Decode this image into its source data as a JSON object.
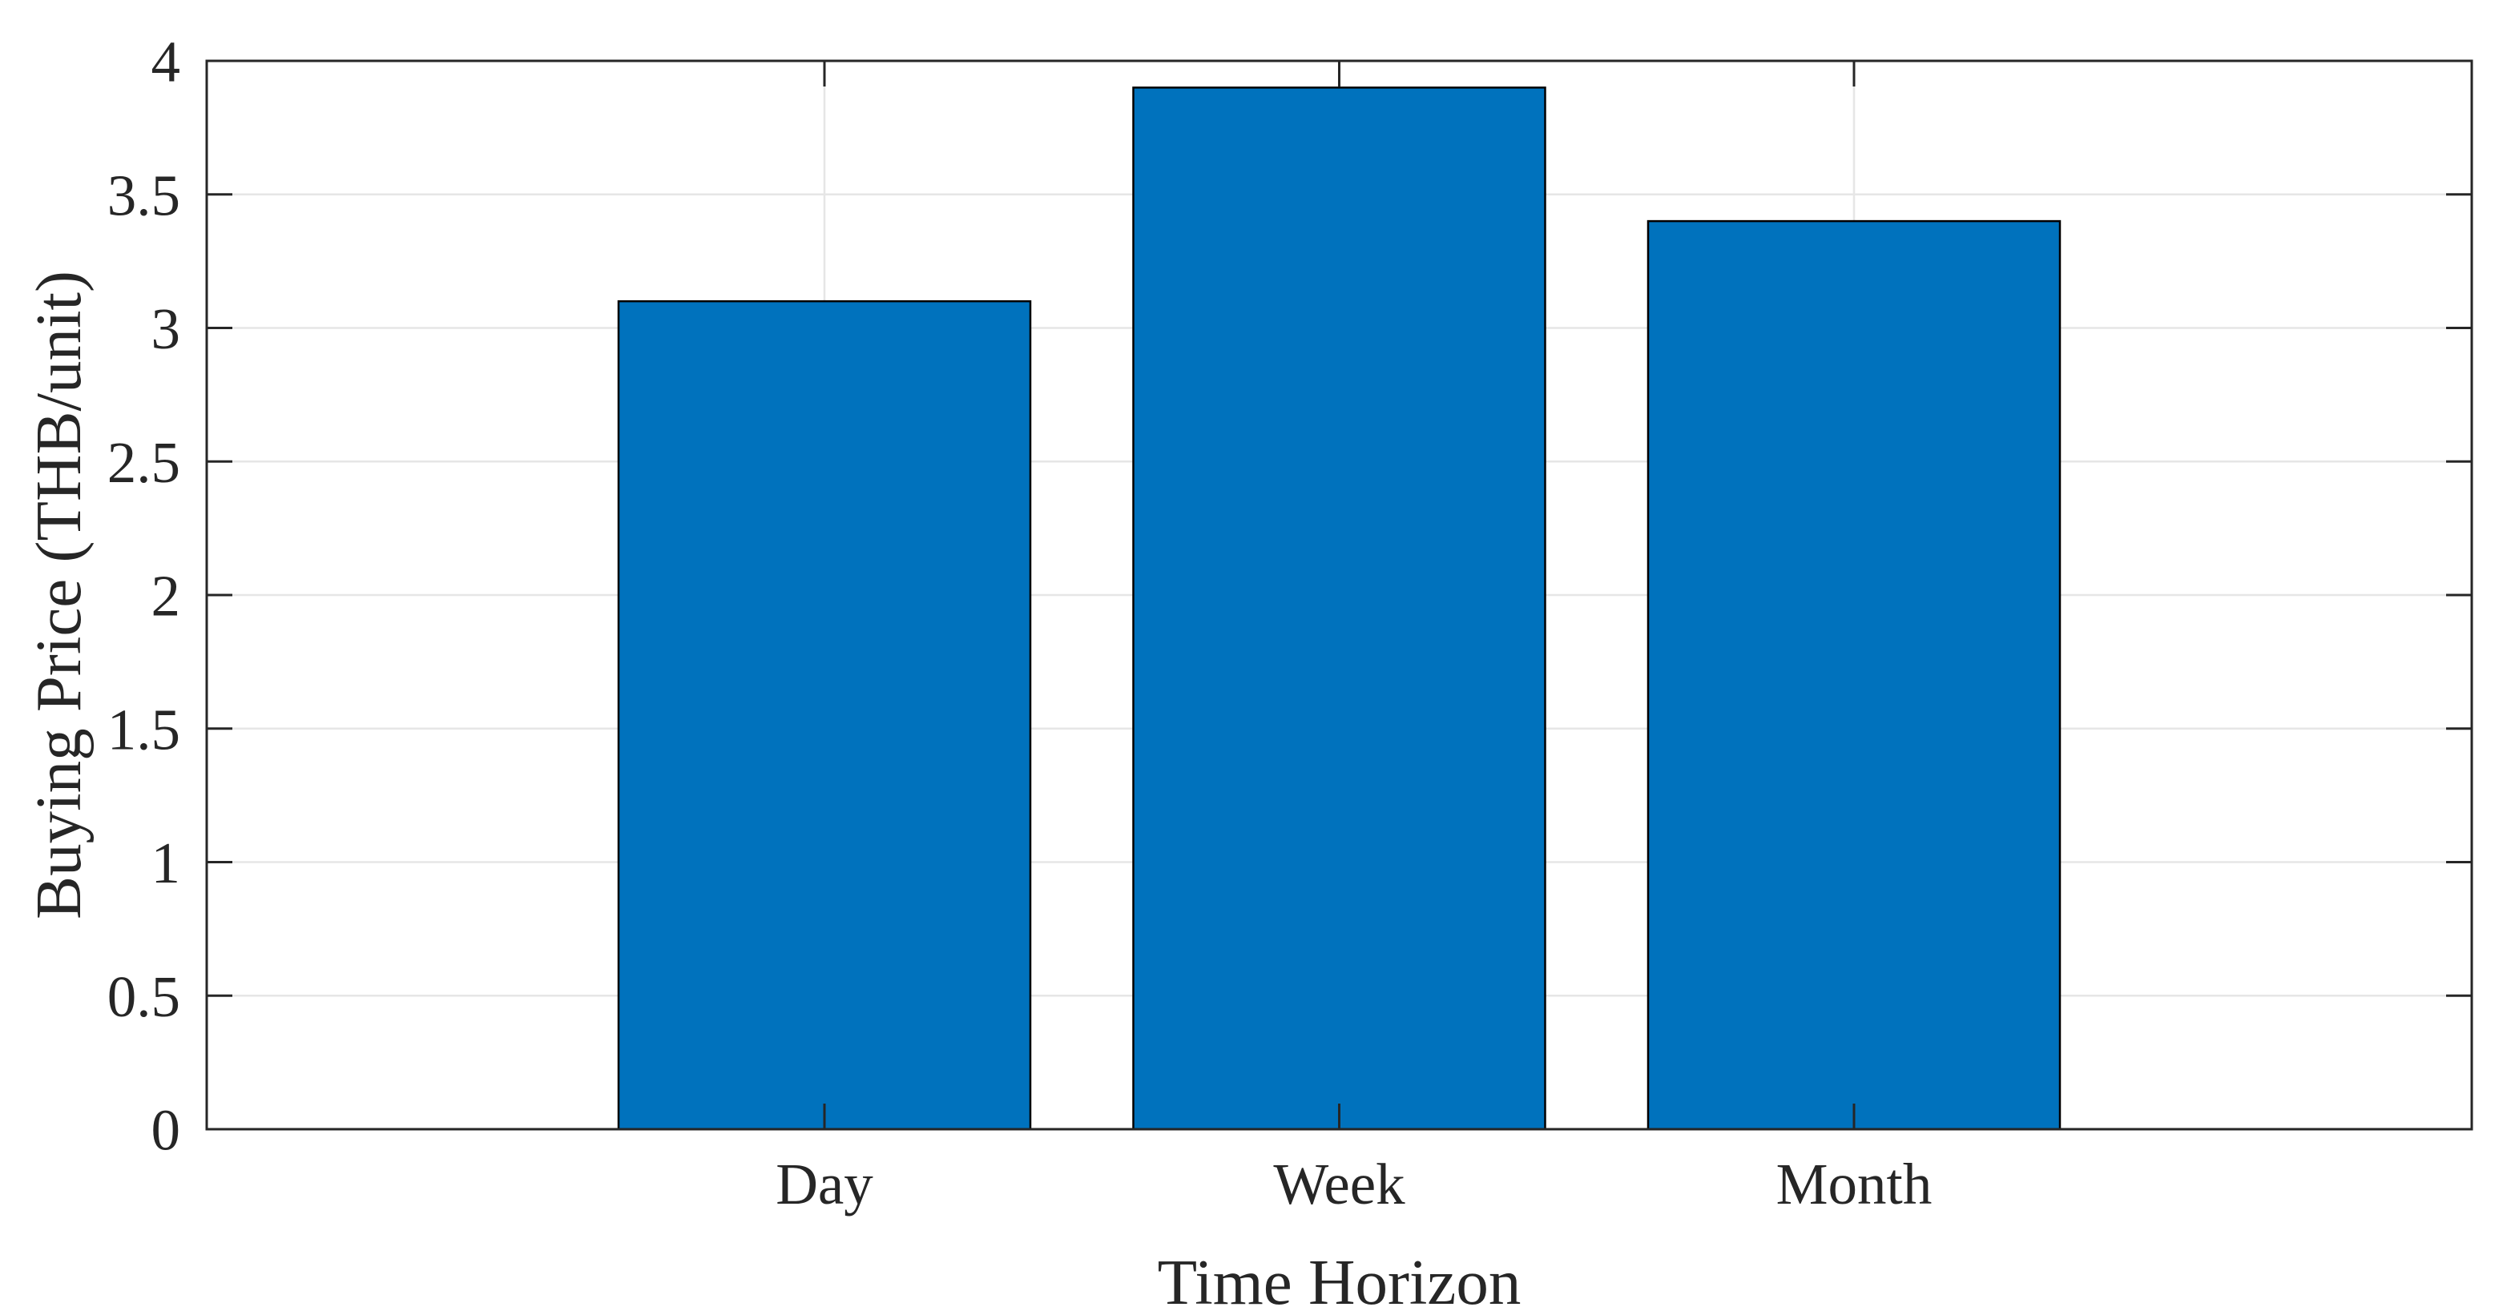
{
  "chart_data": {
    "type": "bar",
    "title": "",
    "categories": [
      "Day",
      "Week",
      "Month"
    ],
    "values": [
      3.1,
      3.9,
      3.4
    ],
    "xlabel": "Time Horizon",
    "ylabel": "Buying Price (THB/unit)",
    "ylim": [
      0,
      4
    ],
    "ytick_step": 0.5,
    "ytick_labels": [
      "0",
      "0.5",
      "1",
      "1.5",
      "2",
      "2.5",
      "3",
      "3.5",
      "4"
    ],
    "xlim": [
      -0.2,
      4.2
    ],
    "bar_width_fraction": 0.8,
    "grid": "on",
    "box": "on",
    "legend_position": "none",
    "colors": {
      "bar_fill": "#0072BD",
      "bar_edge": "#000000",
      "grid": "#E6E6E6",
      "axis": "#262626",
      "text": "#262626",
      "background": "#FFFFFF"
    }
  }
}
